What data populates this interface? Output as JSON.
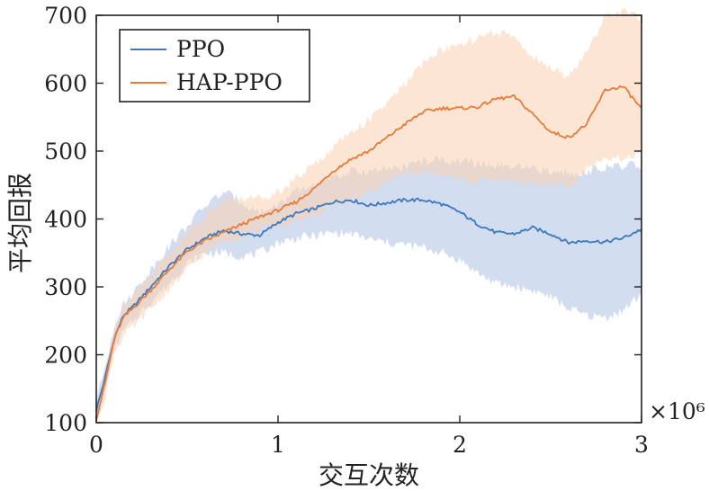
{
  "chart_data": {
    "type": "line",
    "title": "",
    "xlabel": "交互次数",
    "ylabel": "平均回报",
    "x_exponent_label": "×10⁶",
    "xlim": [
      0,
      3
    ],
    "ylim": [
      100,
      700
    ],
    "xticks": [
      0,
      1,
      2,
      3
    ],
    "xtick_labels": [
      "0",
      "1",
      "2",
      "3"
    ],
    "yticks": [
      100,
      200,
      300,
      400,
      500,
      600,
      700
    ],
    "ytick_labels": [
      "100",
      "200",
      "300",
      "400",
      "500",
      "600",
      "700"
    ],
    "grid": false,
    "legend_position": "top-left",
    "series": [
      {
        "name": "PPO",
        "color": "#3b78bd",
        "band_color": "#aec1e4",
        "x": [
          0,
          0.05,
          0.1,
          0.15,
          0.2,
          0.3,
          0.4,
          0.5,
          0.6,
          0.7,
          0.8,
          0.9,
          1.0,
          1.1,
          1.2,
          1.3,
          1.4,
          1.5,
          1.6,
          1.7,
          1.8,
          1.9,
          2.0,
          2.1,
          2.2,
          2.3,
          2.4,
          2.5,
          2.6,
          2.7,
          2.8,
          2.9,
          3.0
        ],
        "mean": [
          118,
          168,
          225,
          258,
          270,
          300,
          330,
          355,
          372,
          383,
          378,
          376,
          395,
          408,
          415,
          425,
          428,
          420,
          424,
          428,
          428,
          422,
          410,
          392,
          380,
          378,
          387,
          378,
          365,
          368,
          366,
          372,
          385
        ],
        "lower": [
          108,
          150,
          208,
          235,
          250,
          278,
          305,
          335,
          350,
          350,
          345,
          350,
          365,
          372,
          375,
          380,
          378,
          370,
          365,
          362,
          358,
          350,
          340,
          320,
          305,
          300,
          295,
          285,
          268,
          258,
          255,
          265,
          290
        ],
        "upper": [
          130,
          185,
          245,
          275,
          290,
          325,
          360,
          390,
          420,
          440,
          425,
          410,
          420,
          440,
          450,
          460,
          470,
          470,
          472,
          478,
          485,
          487,
          485,
          482,
          478,
          475,
          475,
          470,
          468,
          470,
          475,
          478,
          480
        ]
      },
      {
        "name": "HAP-PPO",
        "color": "#e57c3c",
        "band_color": "#fbd0b1",
        "x": [
          0,
          0.05,
          0.1,
          0.15,
          0.2,
          0.3,
          0.4,
          0.5,
          0.6,
          0.7,
          0.8,
          0.9,
          1.0,
          1.1,
          1.2,
          1.3,
          1.4,
          1.5,
          1.6,
          1.7,
          1.8,
          1.9,
          2.0,
          2.1,
          2.2,
          2.3,
          2.4,
          2.5,
          2.6,
          2.7,
          2.8,
          2.9,
          3.0
        ],
        "mean": [
          105,
          160,
          225,
          255,
          268,
          295,
          325,
          352,
          368,
          380,
          392,
          403,
          413,
          425,
          445,
          470,
          488,
          500,
          520,
          540,
          558,
          563,
          563,
          565,
          577,
          580,
          555,
          528,
          520,
          540,
          590,
          595,
          562
        ],
        "lower": [
          100,
          140,
          205,
          228,
          240,
          268,
          295,
          325,
          350,
          368,
          375,
          385,
          390,
          395,
          405,
          420,
          430,
          440,
          455,
          465,
          470,
          465,
          458,
          455,
          458,
          455,
          452,
          450,
          450,
          475,
          485,
          490,
          495
        ],
        "upper": [
          115,
          180,
          240,
          275,
          288,
          318,
          350,
          380,
          405,
          428,
          430,
          432,
          440,
          460,
          480,
          505,
          530,
          545,
          570,
          600,
          630,
          650,
          655,
          665,
          675,
          668,
          640,
          620,
          612,
          645,
          700,
          705,
          695
        ]
      }
    ]
  }
}
